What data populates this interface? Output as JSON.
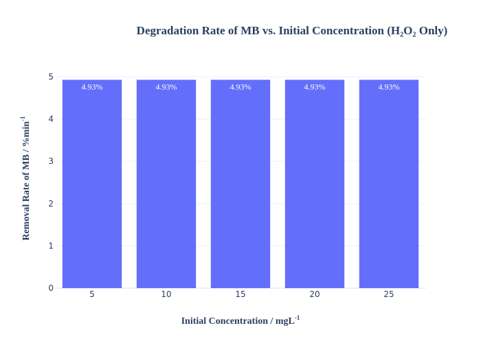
{
  "chart_data": {
    "type": "bar",
    "title": "Degradation Rate of MB vs. Initial Concentration (H₂O₂ Only)",
    "xlabel": "Initial Concentration / mgL",
    "xlabel_sup": "-1",
    "ylabel": "Removal Rate of MB / %min",
    "ylabel_sup": "-1",
    "categories": [
      "5",
      "10",
      "15",
      "20",
      "25"
    ],
    "values": [
      4.93,
      4.93,
      4.93,
      4.93,
      4.93
    ],
    "data_labels": [
      "4.93%",
      "4.93%",
      "4.93%",
      "4.93%",
      "4.93%"
    ],
    "yticks": [
      "0",
      "1",
      "2",
      "3",
      "4",
      "5"
    ],
    "ylim": [
      0,
      5
    ],
    "bar_color": "#636efa",
    "grid": true,
    "legend": "none"
  }
}
